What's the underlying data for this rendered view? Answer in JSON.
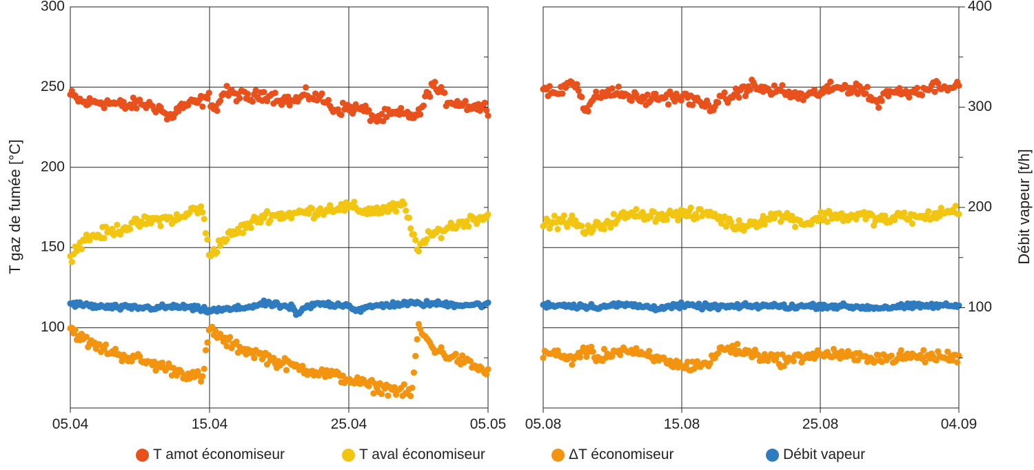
{
  "chart_data": {
    "type": "scatter",
    "ylabel_left": "T gaz de fumée [°C]",
    "ylabel_right": "Débit vapeur [t/h]",
    "ylim_left": [
      50,
      300
    ],
    "ylim_right": [
      0,
      400
    ],
    "yticks_left": [
      100,
      150,
      200,
      250,
      300
    ],
    "yticks_right": [
      100,
      200,
      300,
      400
    ],
    "grid": true,
    "legend_position": "bottom",
    "colors": {
      "amont": "#e8501c",
      "aval": "#f2c510",
      "delta": "#f39410",
      "debit": "#2f7bbf"
    },
    "series_labels": {
      "amont": "T amot économiseur",
      "aval": "T aval économiseur",
      "delta": "ΔT économiseur",
      "debit": "Débit vapeur"
    },
    "panels": [
      {
        "xtick_labels": [
          "05.04",
          "15.04",
          "25.04",
          "05.05"
        ],
        "x_range_days": 30,
        "series": {
          "amont": {
            "axis": "left",
            "x": [
              0,
              1,
              2,
              3,
              4,
              5,
              6,
              6.5,
              7,
              8,
              9,
              10,
              10.5,
              11,
              12,
              13,
              14,
              15,
              16,
              17,
              18,
              18.5,
              19,
              20,
              21,
              22,
              23,
              24,
              25,
              26,
              27,
              28,
              29,
              30
            ],
            "y": [
              245,
              240,
              241,
              240,
              238,
              240,
              238,
              237,
              230,
              238,
              240,
              243,
              236,
              247,
              245,
              243,
              246,
              243,
              241,
              245,
              243,
              240,
              236,
              237,
              236,
              230,
              233,
              233,
              232,
              252,
              242,
              240,
              238,
              237
            ]
          },
          "aval": {
            "axis": "left",
            "x": [
              0,
              1,
              2,
              3,
              4,
              5,
              6,
              7,
              8,
              9,
              9.5,
              10,
              11,
              12,
              13,
              14,
              15,
              16,
              17,
              18,
              19,
              20,
              21,
              22,
              23,
              24,
              24.5,
              25,
              26,
              27,
              28,
              29,
              30
            ],
            "y": [
              145,
              155,
              158,
              160,
              163,
              165,
              167,
              168,
              168,
              175,
              172,
              145,
              155,
              160,
              165,
              170,
              170,
              171,
              172,
              173,
              175,
              175,
              173,
              173,
              174,
              176,
              160,
              150,
              158,
              162,
              165,
              168,
              170
            ]
          },
          "delta": {
            "axis": "left",
            "x": [
              0,
              1,
              2,
              3,
              4,
              5,
              6,
              7,
              8,
              9,
              9.5,
              10,
              11,
              12,
              13,
              14,
              15,
              16,
              17,
              18,
              19,
              20,
              21,
              22,
              23,
              24,
              24.5,
              25,
              26,
              27,
              28,
              29,
              30
            ],
            "y": [
              100,
              92,
              88,
              85,
              82,
              80,
              77,
              75,
              72,
              70,
              68,
              100,
              92,
              88,
              85,
              82,
              78,
              76,
              74,
              72,
              70,
              68,
              65,
              63,
              62,
              60,
              58,
              100,
              88,
              83,
              80,
              76,
              72
            ]
          },
          "debit": {
            "axis": "right",
            "x": [
              0,
              2,
              4,
              6,
              8,
              10,
              12,
              14,
              16,
              16.2,
              17,
              18,
              19,
              20,
              20.5,
              22,
              24,
              26,
              28,
              30
            ],
            "y": [
              104,
              101,
              100,
              100,
              101,
              97,
              99,
              104,
              100,
              92,
              101,
              104,
              103,
              103,
              97,
              102,
              104,
              104,
              103,
              103
            ]
          }
        }
      },
      {
        "xtick_labels": [
          "05.08",
          "15.08",
          "25.08",
          "04.09"
        ],
        "x_range_days": 30,
        "series": {
          "amont": {
            "axis": "left",
            "x": [
              0,
              1,
              2,
              2.5,
              3,
              4,
              5,
              6,
              7,
              8,
              9,
              10,
              11,
              12,
              13,
              14,
              15,
              16,
              17,
              18,
              19,
              20,
              21,
              22,
              23,
              24,
              25,
              26,
              27,
              28,
              29,
              30
            ],
            "y": [
              248,
              246,
              254,
              252,
              235,
              245,
              247,
              245,
              242,
              243,
              244,
              244,
              241,
              238,
              242,
              246,
              251,
              248,
              248,
              245,
              244,
              247,
              249,
              250,
              249,
              240,
              248,
              246,
              248,
              250,
              252,
              249
            ]
          },
          "aval": {
            "axis": "left",
            "x": [
              0,
              1,
              2,
              3,
              4,
              5,
              6,
              7,
              8,
              9,
              10,
              11,
              12,
              13,
              14,
              15,
              16,
              17,
              18,
              19,
              20,
              21,
              22,
              23,
              24,
              25,
              26,
              27,
              28,
              29,
              30
            ],
            "y": [
              165,
              166,
              167,
              160,
              163,
              167,
              170,
              171,
              170,
              170,
              171,
              170,
              172,
              167,
              163,
              165,
              168,
              170,
              168,
              165,
              169,
              170,
              169,
              170,
              168,
              167,
              170,
              168,
              170,
              172,
              173
            ]
          },
          "debit": {
            "axis": "right",
            "x": [
              0,
              2,
              4,
              6,
              8,
              10,
              12,
              14,
              16,
              18,
              20,
              22,
              24,
              26,
              28,
              30
            ],
            "y": [
              103,
              102,
              101,
              103,
              100,
              102,
              101,
              101,
              102,
              101,
              102,
              101,
              100,
              101,
              102,
              102
            ]
          },
          "delta": {
            "axis": "left",
            "x": [
              0,
              1,
              2,
              3,
              4,
              5,
              6,
              7,
              8,
              9,
              10,
              11,
              12,
              13,
              14,
              15,
              16,
              17,
              18,
              19,
              20,
              21,
              22,
              23,
              24,
              25,
              26,
              27,
              28,
              29,
              30
            ],
            "y": [
              85,
              83,
              80,
              86,
              81,
              85,
              86,
              83,
              81,
              79,
              76,
              77,
              78,
              88,
              86,
              84,
              82,
              80,
              80,
              83,
              83,
              84,
              82,
              81,
              82,
              81,
              82,
              82,
              82,
              82,
              81
            ]
          }
        }
      }
    ]
  }
}
